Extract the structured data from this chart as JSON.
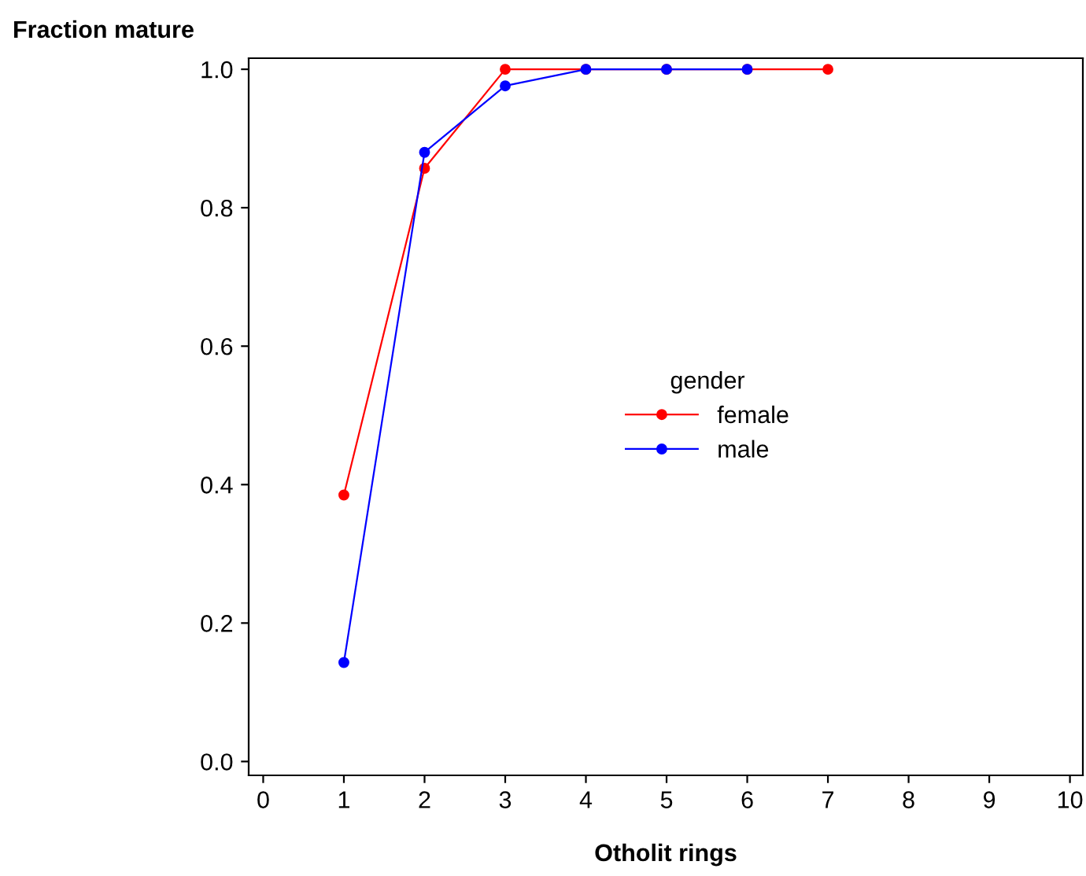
{
  "chart_data": {
    "type": "line",
    "xlabel": "Otholit rings",
    "ylabel": "Fraction mature",
    "legend_title": "gender",
    "xlim": [
      -0.18,
      10.16
    ],
    "xticks": [
      0,
      1,
      2,
      3,
      4,
      5,
      6,
      7,
      8,
      9,
      10
    ],
    "ylim": [
      -0.02,
      1.016
    ],
    "yticks": [
      {
        "value": 0,
        "label": "0.0"
      },
      {
        "value": 0.2,
        "label": "0.2"
      },
      {
        "value": 0.4,
        "label": "0.4"
      },
      {
        "value": 0.6,
        "label": "0.6"
      },
      {
        "value": 0.8,
        "label": "0.8"
      },
      {
        "value": 1,
        "label": "1.0"
      }
    ],
    "series": [
      {
        "name": "female",
        "color": "#ff0000",
        "x": [
          1,
          2,
          3,
          4,
          5,
          6,
          7
        ],
        "values": [
          0.385,
          0.857,
          1.0,
          1.0,
          1.0,
          1.0,
          1.0
        ]
      },
      {
        "name": "male",
        "color": "#0000ff",
        "x": [
          1,
          2,
          3,
          4,
          5,
          6
        ],
        "values": [
          0.143,
          0.88,
          0.976,
          1.0,
          1.0,
          1.0
        ]
      }
    ],
    "marker": "circle",
    "line_style": "solid",
    "legend": "center",
    "grid": false
  }
}
